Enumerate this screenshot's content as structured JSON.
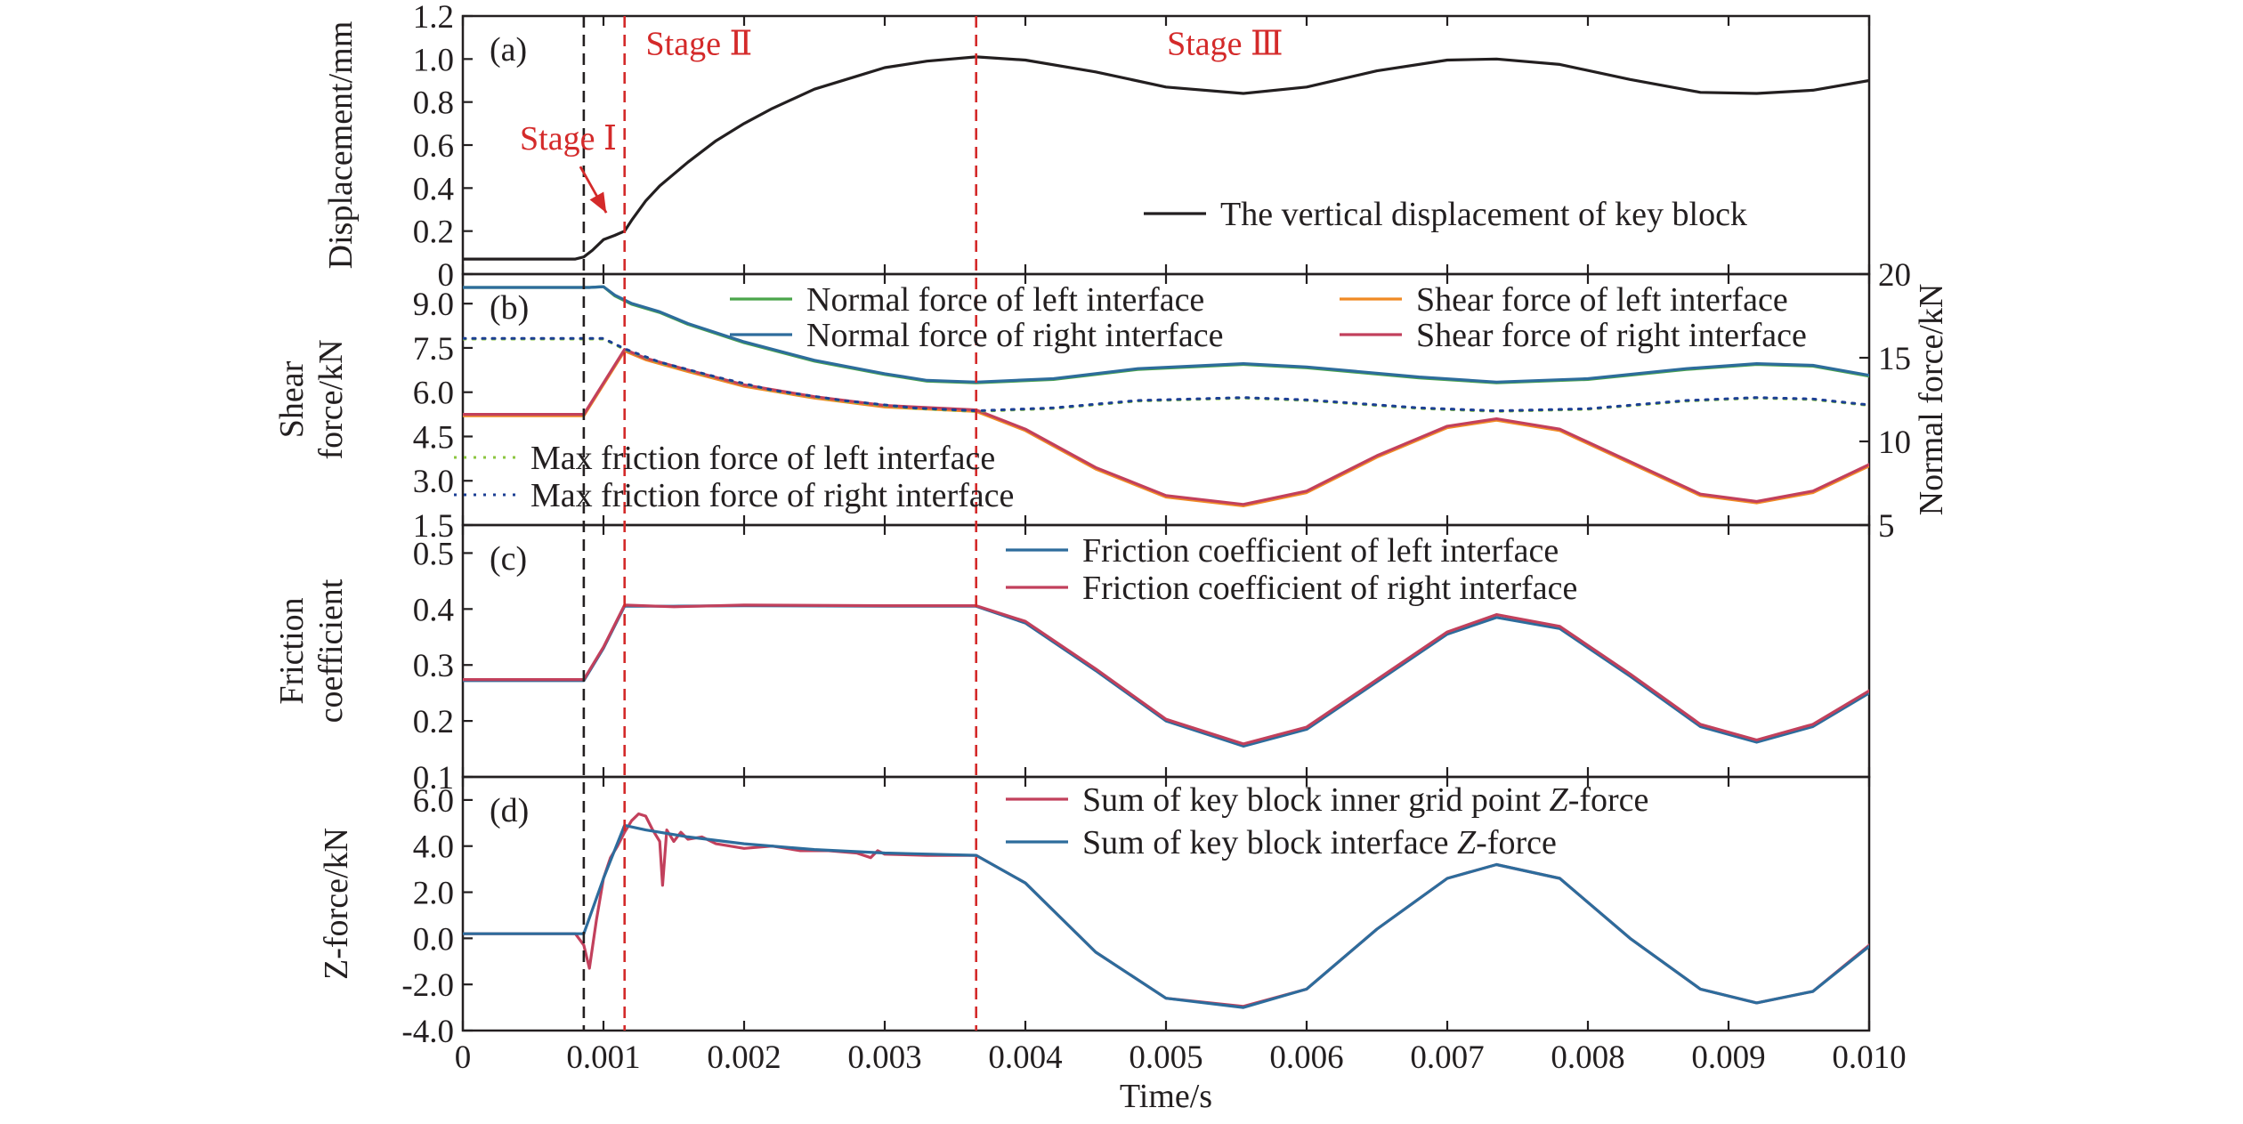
{
  "chart_data": {
    "type": "line",
    "xlabel": "Time/s",
    "xlim": [
      0,
      0.01
    ],
    "x_ticks": [
      0,
      0.001,
      0.002,
      0.003,
      0.004,
      0.005,
      0.006,
      0.007,
      0.008,
      0.009,
      0.01
    ],
    "x_tick_labels": [
      "0",
      "0.001",
      "0.002",
      "0.003",
      "0.004",
      "0.005",
      "0.006",
      "0.007",
      "0.008",
      "0.009",
      "0.010"
    ],
    "markers": [
      {
        "x": 0.00086,
        "color": "#231f20"
      },
      {
        "x": 0.00115,
        "color": "#d42a2a"
      },
      {
        "x": 0.00365,
        "color": "#d42a2a"
      }
    ],
    "stage_labels": [
      {
        "text": "Stage Ⅰ",
        "x": 0.00075,
        "y": 0.58
      },
      {
        "text": "Stage Ⅱ",
        "x": 0.00168,
        "y": 1.02
      },
      {
        "text": "Stage Ⅲ",
        "x": 0.00542,
        "y": 1.02
      }
    ],
    "panels": [
      {
        "id": "a",
        "label": "(a)",
        "ylabel": [
          "Displacement/mm"
        ],
        "ylim": [
          0,
          1.2
        ],
        "yticks": [
          0,
          0.2,
          0.4,
          0.6,
          0.8,
          1.0,
          1.2
        ],
        "ytick_labels": [
          "0",
          "0.2",
          "0.4",
          "0.6",
          "0.8",
          "1.0",
          "1.2"
        ],
        "legend": [
          {
            "name": "The vertical displacement of key block",
            "color": "#231f20",
            "style": "solid"
          }
        ],
        "series": [
          {
            "name": "The vertical displacement of key block",
            "color": "#231f20",
            "style": "solid",
            "x": [
              0,
              0.0008,
              0.00086,
              0.00092,
              0.001,
              0.00108,
              0.00115,
              0.0012,
              0.0013,
              0.0014,
              0.0016,
              0.0018,
              0.002,
              0.0022,
              0.0025,
              0.0028,
              0.003,
              0.0033,
              0.00365,
              0.004,
              0.0045,
              0.005,
              0.00555,
              0.006,
              0.0065,
              0.007,
              0.00735,
              0.0078,
              0.0083,
              0.0088,
              0.0092,
              0.0096,
              0.01
            ],
            "y": [
              0.07,
              0.07,
              0.08,
              0.11,
              0.16,
              0.18,
              0.2,
              0.25,
              0.34,
              0.41,
              0.52,
              0.62,
              0.7,
              0.77,
              0.86,
              0.92,
              0.96,
              0.99,
              1.01,
              0.995,
              0.94,
              0.87,
              0.84,
              0.87,
              0.945,
              0.995,
              1.0,
              0.975,
              0.905,
              0.845,
              0.84,
              0.855,
              0.9
            ]
          }
        ]
      },
      {
        "id": "b",
        "label": "(b)",
        "ylabel": [
          "Shear",
          "force/kN"
        ],
        "ylabel_right": "Normal force/kN",
        "ylim": [
          1.5,
          10.0
        ],
        "yticks": [
          1.5,
          3.0,
          4.5,
          6.0,
          7.5,
          9.0
        ],
        "ytick_labels": [
          "1.5",
          "3.0",
          "4.5",
          "6.0",
          "7.5",
          "9.0"
        ],
        "ylim_right": [
          5,
          20
        ],
        "yticks_right": [
          5,
          10,
          15,
          20
        ],
        "ytick_labels_right": [
          "5",
          "10",
          "15",
          "20"
        ],
        "legend": [
          {
            "name": "Normal force of left interface",
            "color": "#4aa54a",
            "style": "solid"
          },
          {
            "name": "Normal force of right interface",
            "color": "#2d6c9c",
            "style": "solid"
          },
          {
            "name": "Shear force of left interface",
            "color": "#f08a24",
            "style": "solid"
          },
          {
            "name": "Shear force of right interface",
            "color": "#c2405c",
            "style": "solid"
          },
          {
            "name": "Max friction force of left interface",
            "color": "#8cc63f",
            "style": "dotted"
          },
          {
            "name": "Max friction force of right interface",
            "color": "#1c3f94",
            "style": "dotted"
          }
        ],
        "series": [
          {
            "name": "Normal force of left interface",
            "color": "#4aa54a",
            "style": "solid",
            "axis": "right",
            "x": [
              0,
              0.0009,
              0.001,
              0.00108,
              0.0012,
              0.0014,
              0.0016,
              0.002,
              0.0025,
              0.003,
              0.0033,
              0.00365,
              0.0042,
              0.0048,
              0.00555,
              0.006,
              0.0068,
              0.00735,
              0.008,
              0.0087,
              0.0092,
              0.0096,
              0.01
            ],
            "y": [
              19.2,
              19.2,
              19.25,
              18.7,
              18.2,
              17.7,
              17.0,
              15.9,
              14.8,
              14.0,
              13.6,
              13.5,
              13.7,
              14.3,
              14.6,
              14.4,
              13.8,
              13.5,
              13.7,
              14.3,
              14.6,
              14.5,
              13.9
            ]
          },
          {
            "name": "Normal force of right interface",
            "color": "#2d6c9c",
            "style": "solid",
            "axis": "right",
            "x": [
              0,
              0.0009,
              0.001,
              0.00108,
              0.0012,
              0.0014,
              0.0016,
              0.002,
              0.0025,
              0.003,
              0.0033,
              0.00365,
              0.0042,
              0.0048,
              0.00555,
              0.006,
              0.0068,
              0.00735,
              0.008,
              0.0087,
              0.0092,
              0.0096,
              0.01
            ],
            "y": [
              19.2,
              19.2,
              19.25,
              18.75,
              18.25,
              17.75,
              17.05,
              15.95,
              14.85,
              14.05,
              13.65,
              13.55,
              13.75,
              14.35,
              14.65,
              14.45,
              13.85,
              13.55,
              13.75,
              14.35,
              14.65,
              14.55,
              13.95
            ]
          },
          {
            "name": "Shear force of left interface",
            "color": "#f08a24",
            "style": "solid",
            "axis": "left",
            "x": [
              0,
              0.00086,
              0.00115,
              0.0013,
              0.0016,
              0.002,
              0.0025,
              0.003,
              0.00365,
              0.004,
              0.0045,
              0.005,
              0.00555,
              0.006,
              0.0065,
              0.007,
              0.00735,
              0.0078,
              0.0083,
              0.0088,
              0.0092,
              0.0096,
              0.01
            ],
            "y": [
              5.2,
              5.2,
              7.4,
              7.1,
              6.7,
              6.2,
              5.8,
              5.5,
              5.35,
              4.7,
              3.4,
              2.45,
              2.15,
              2.6,
              3.8,
              4.8,
              5.05,
              4.7,
              3.6,
              2.5,
              2.25,
              2.6,
              3.5
            ]
          },
          {
            "name": "Shear force of right interface",
            "color": "#c2405c",
            "style": "solid",
            "axis": "left",
            "x": [
              0,
              0.00086,
              0.00115,
              0.0013,
              0.0016,
              0.002,
              0.0025,
              0.003,
              0.00365,
              0.004,
              0.0045,
              0.005,
              0.00555,
              0.006,
              0.0065,
              0.007,
              0.00735,
              0.0078,
              0.0083,
              0.0088,
              0.0092,
              0.0096,
              0.01
            ],
            "y": [
              5.25,
              5.25,
              7.45,
              7.15,
              6.75,
              6.25,
              5.85,
              5.55,
              5.4,
              4.75,
              3.45,
              2.5,
              2.2,
              2.65,
              3.85,
              4.85,
              5.1,
              4.75,
              3.65,
              2.55,
              2.3,
              2.65,
              3.55
            ]
          },
          {
            "name": "Max friction force of left interface",
            "color": "#8cc63f",
            "style": "dotted",
            "axis": "left",
            "x": [
              0,
              0.00086,
              0.001,
              0.00115,
              0.0014,
              0.0018,
              0.0022,
              0.0027,
              0.0032,
              0.00365,
              0.0042,
              0.0048,
              0.00555,
              0.006,
              0.0068,
              0.00735,
              0.008,
              0.0087,
              0.0092,
              0.0096,
              0.01
            ],
            "y": [
              7.8,
              7.8,
              7.8,
              7.45,
              7.0,
              6.5,
              6.05,
              5.7,
              5.45,
              5.35,
              5.45,
              5.7,
              5.8,
              5.72,
              5.45,
              5.35,
              5.42,
              5.7,
              5.8,
              5.75,
              5.55
            ]
          },
          {
            "name": "Max friction force of right interface",
            "color": "#1c3f94",
            "style": "dotted",
            "axis": "left",
            "x": [
              0,
              0.00086,
              0.001,
              0.00115,
              0.0014,
              0.0018,
              0.0022,
              0.0027,
              0.0032,
              0.00365,
              0.0042,
              0.0048,
              0.00555,
              0.006,
              0.0068,
              0.00735,
              0.008,
              0.0087,
              0.0092,
              0.0096,
              0.01
            ],
            "y": [
              7.82,
              7.82,
              7.82,
              7.47,
              7.02,
              6.52,
              6.07,
              5.72,
              5.47,
              5.37,
              5.47,
              5.72,
              5.82,
              5.74,
              5.47,
              5.37,
              5.44,
              5.72,
              5.82,
              5.77,
              5.57
            ]
          }
        ]
      },
      {
        "id": "c",
        "label": "(c)",
        "ylabel": [
          "Friction",
          "coefficient"
        ],
        "ylim": [
          0.1,
          0.55
        ],
        "yticks": [
          0.1,
          0.2,
          0.3,
          0.4,
          0.5
        ],
        "ytick_labels": [
          "0.1",
          "0.2",
          "0.3",
          "0.4",
          "0.5"
        ],
        "legend": [
          {
            "name": "Friction coefficient of left interface",
            "color": "#2d6c9c",
            "style": "solid"
          },
          {
            "name": "Friction coefficient of right interface",
            "color": "#c2405c",
            "style": "solid"
          }
        ],
        "series": [
          {
            "name": "Friction coefficient of left interface",
            "color": "#2d6c9c",
            "style": "solid",
            "x": [
              0,
              0.00086,
              0.001,
              0.00115,
              0.0015,
              0.002,
              0.003,
              0.00365,
              0.004,
              0.0045,
              0.005,
              0.00555,
              0.006,
              0.0065,
              0.007,
              0.00735,
              0.0078,
              0.0083,
              0.0088,
              0.0092,
              0.0096,
              0.01
            ],
            "y": [
              0.272,
              0.272,
              0.33,
              0.405,
              0.405,
              0.406,
              0.405,
              0.405,
              0.375,
              0.29,
              0.2,
              0.155,
              0.185,
              0.27,
              0.355,
              0.385,
              0.365,
              0.28,
              0.19,
              0.162,
              0.19,
              0.25
            ]
          },
          {
            "name": "Friction coefficient of right interface",
            "color": "#c2405c",
            "style": "solid",
            "x": [
              0,
              0.00086,
              0.001,
              0.00115,
              0.0015,
              0.002,
              0.003,
              0.00365,
              0.004,
              0.0045,
              0.005,
              0.00555,
              0.006,
              0.0065,
              0.007,
              0.00735,
              0.0078,
              0.0083,
              0.0088,
              0.0092,
              0.0096,
              0.01
            ],
            "y": [
              0.274,
              0.274,
              0.332,
              0.407,
              0.404,
              0.407,
              0.406,
              0.406,
              0.378,
              0.293,
              0.203,
              0.159,
              0.189,
              0.274,
              0.359,
              0.39,
              0.369,
              0.284,
              0.194,
              0.166,
              0.194,
              0.254
            ]
          }
        ]
      },
      {
        "id": "d",
        "label": "(d)",
        "ylabel": [
          "Z-force/kN"
        ],
        "ylim": [
          -4.0,
          7.0
        ],
        "yticks": [
          -4.0,
          -2.0,
          0.0,
          2.0,
          4.0,
          6.0
        ],
        "ytick_labels": [
          "-4.0",
          "-2.0",
          "0.0",
          "2.0",
          "4.0",
          "6.0"
        ],
        "legend": [
          {
            "name": "Sum of key block inner grid point Z-force",
            "color": "#c2405c",
            "style": "solid"
          },
          {
            "name": "Sum of key block interface Z-force",
            "color": "#2d6c9c",
            "style": "solid"
          }
        ],
        "series": [
          {
            "name": "Sum of key block inner grid point Z-force",
            "color": "#c2405c",
            "style": "solid",
            "x": [
              0,
              0.0008,
              0.00086,
              0.0009,
              0.00095,
              0.001,
              0.00105,
              0.0011,
              0.00115,
              0.0012,
              0.00125,
              0.0013,
              0.00135,
              0.0014,
              0.00142,
              0.00145,
              0.0015,
              0.00155,
              0.0016,
              0.0017,
              0.0018,
              0.0019,
              0.002,
              0.0022,
              0.0024,
              0.0026,
              0.0028,
              0.0029,
              0.00295,
              0.003,
              0.0033,
              0.00365,
              0.004,
              0.0045,
              0.005,
              0.00555,
              0.006,
              0.0065,
              0.007,
              0.00735,
              0.0078,
              0.0083,
              0.0088,
              0.0092,
              0.0096,
              0.01
            ],
            "y": [
              0.2,
              0.2,
              -0.3,
              -1.3,
              0.8,
              2.6,
              3.5,
              4.0,
              4.6,
              5.1,
              5.4,
              5.3,
              4.7,
              4.2,
              2.3,
              4.7,
              4.2,
              4.6,
              4.3,
              4.4,
              4.1,
              4.0,
              3.9,
              4.0,
              3.8,
              3.8,
              3.7,
              3.5,
              3.8,
              3.65,
              3.6,
              3.6,
              2.4,
              -0.6,
              -2.6,
              -2.95,
              -2.2,
              0.4,
              2.6,
              3.2,
              2.6,
              0.0,
              -2.2,
              -2.8,
              -2.3,
              -0.3
            ]
          },
          {
            "name": "Sum of key block interface Z-force",
            "color": "#2d6c9c",
            "style": "solid",
            "x": [
              0,
              0.00086,
              0.001,
              0.00115,
              0.0013,
              0.0016,
              0.002,
              0.0025,
              0.003,
              0.00365,
              0.004,
              0.0045,
              0.005,
              0.00555,
              0.006,
              0.0065,
              0.007,
              0.00735,
              0.0078,
              0.0083,
              0.0088,
              0.0092,
              0.0096,
              0.01
            ],
            "y": [
              0.2,
              0.2,
              2.6,
              4.9,
              4.7,
              4.4,
              4.1,
              3.85,
              3.7,
              3.6,
              2.4,
              -0.6,
              -2.6,
              -3.0,
              -2.2,
              0.4,
              2.6,
              3.2,
              2.6,
              0.0,
              -2.2,
              -2.8,
              -2.3,
              -0.35
            ]
          }
        ]
      }
    ]
  }
}
